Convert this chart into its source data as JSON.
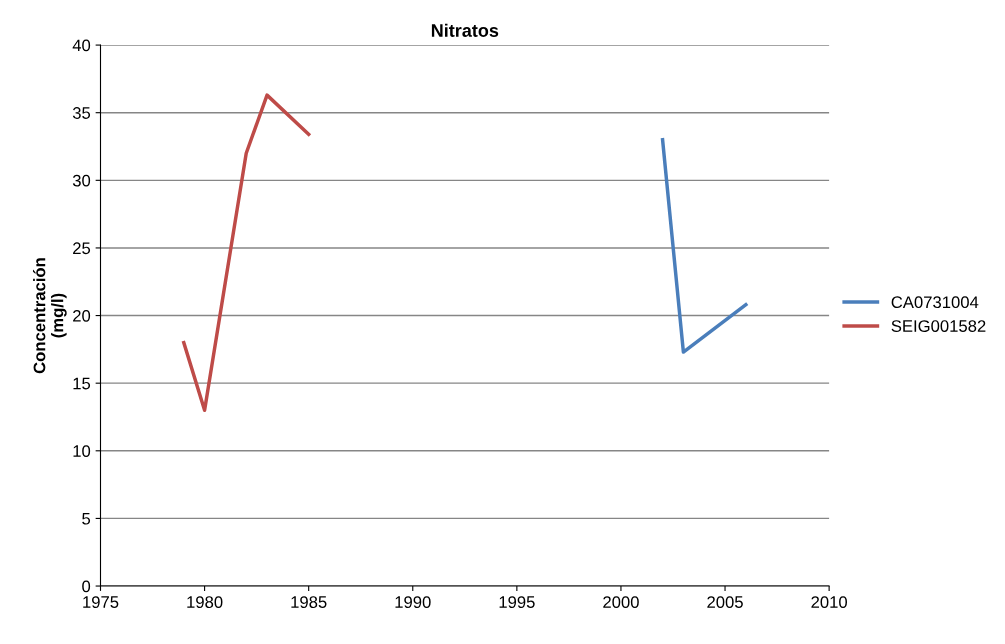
{
  "chart_data": {
    "type": "line",
    "title": "Nitratos",
    "ylabel": "Concentración\n(mg/l)",
    "series": [
      {
        "name": "CA0731004",
        "color": "#4a7ebb",
        "x": [
          2002,
          2003,
          2006
        ],
        "values": [
          33.0,
          17.3,
          20.8
        ]
      },
      {
        "name": "SEIG001582",
        "color": "#be4b48",
        "x": [
          1979,
          1980,
          1982,
          1983,
          1985
        ],
        "values": [
          18.0,
          13.0,
          32.0,
          36.3,
          33.4
        ]
      }
    ],
    "xlim": [
      1975,
      2010
    ],
    "xticks": [
      1975,
      1980,
      1985,
      1990,
      1995,
      2000,
      2005,
      2010
    ],
    "ylim": [
      0,
      40
    ],
    "yticks": [
      0,
      5,
      10,
      15,
      20,
      25,
      30,
      35,
      40
    ],
    "grid": "y",
    "legend": "right",
    "marker": "none",
    "line_style": "solid"
  }
}
